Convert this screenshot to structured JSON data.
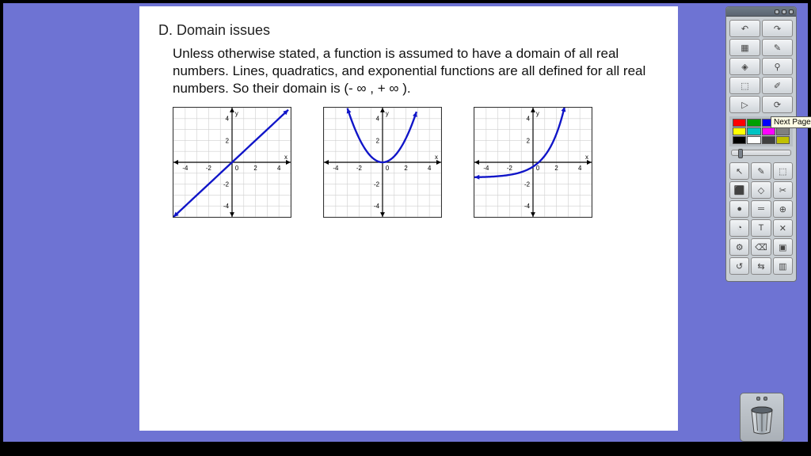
{
  "content": {
    "section_title": "D. Domain issues",
    "body": "Unless otherwise stated, a function is assumed to have a domain of all real numbers. Lines, quadratics, and exponential functions are all defined for all real numbers. So their domain is (- ∞ , + ∞ )."
  },
  "graphs": {
    "xmin": -5,
    "xmax": 5,
    "ymin": -5,
    "ymax": 5,
    "tick_labels_x": [
      "-4",
      "-2",
      "2",
      "4"
    ],
    "tick_labels_y": [
      "4",
      "2",
      "-2",
      "-4"
    ],
    "x_axis_label": "x",
    "y_axis_label": "y",
    "grid_color": "#cfcfcf",
    "axis_color": "#000000",
    "curve_color": "#1015c8",
    "curve_width": 2.4,
    "items": [
      {
        "type": "line",
        "m": 1,
        "b": 0
      },
      {
        "type": "parabola",
        "a": 0.55,
        "vx": 0,
        "vy": 0
      },
      {
        "type": "exp",
        "base": 2,
        "shift": -1.4
      }
    ]
  },
  "toolbar": {
    "tooltip": "Next Page",
    "palette": [
      "#ff0000",
      "#00a000",
      "#0000ff",
      "#9b30ff",
      "#ffff00",
      "#00c3c3",
      "#ff00ff",
      "#808080",
      "#000000",
      "#ffffff",
      "#404040",
      "#c0c000"
    ],
    "tool_icons": [
      "↶",
      "↷",
      "▦",
      "✎",
      "◈",
      "⚲",
      "⬚",
      "✐",
      "▷",
      "⟳"
    ],
    "lower_tools": [
      "↖",
      "✎",
      "⬚",
      "⬛",
      "◇",
      "✂",
      "●",
      "═",
      "⊕",
      "◔",
      "T",
      "✕",
      "⚙",
      "⌫",
      "▣",
      "↺",
      "⇆",
      "▥"
    ]
  }
}
